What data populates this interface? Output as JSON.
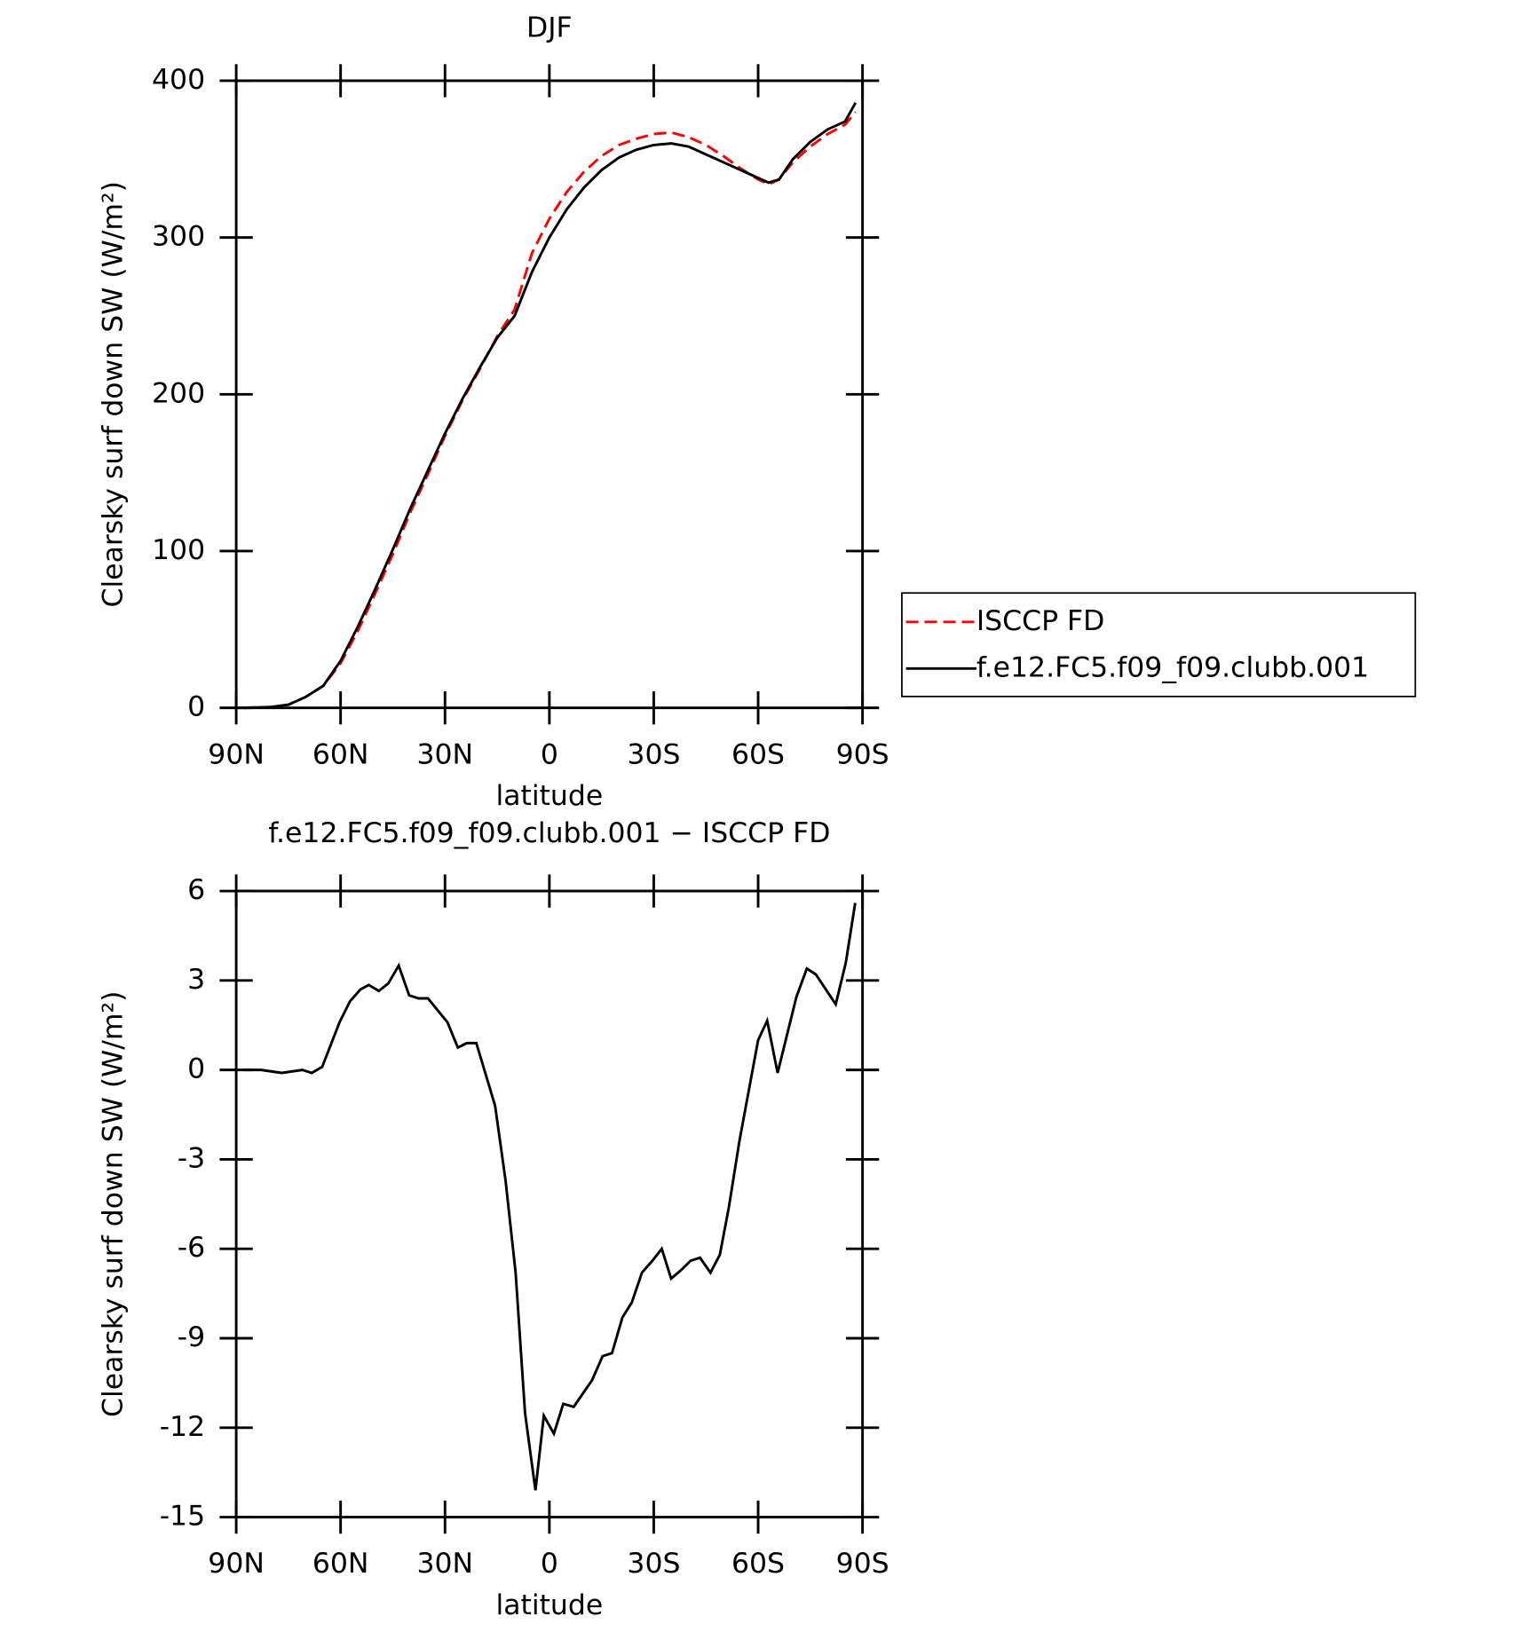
{
  "chart_data": [
    {
      "type": "line",
      "title": "DJF",
      "x_label": "latitude",
      "y_label": "Clearsky surf down SW (W/m²)",
      "x": [
        88,
        80,
        75,
        70,
        65,
        60,
        55,
        50,
        45,
        40,
        35,
        30,
        25,
        20,
        15,
        10,
        5,
        0,
        -5,
        -10,
        -15,
        -20,
        -25,
        -30,
        -35,
        -40,
        -45,
        -50,
        -55,
        -60,
        -63,
        -66,
        -70,
        -75,
        -80,
        -85,
        -88
      ],
      "series": [
        {
          "name": "ISCCP FD",
          "color": "#ff0000",
          "dash": "dashed",
          "values": [
            0,
            0.5,
            2,
            7,
            14,
            28.4,
            49.3,
            73.2,
            98,
            124.5,
            148.6,
            173.4,
            196,
            216,
            237,
            254,
            290,
            312,
            329,
            342,
            352,
            359,
            363,
            366,
            367,
            364,
            359,
            352,
            344,
            337,
            334,
            337,
            348,
            358,
            366,
            372,
            380
          ]
        },
        {
          "name": "f.e12.FC5.f09_f09.clubb.001",
          "color": "#000000",
          "dash": "solid",
          "values": [
            0,
            0.5,
            2,
            7,
            14,
            30,
            52,
            76,
            101,
            127,
            151,
            175,
            197,
            217,
            236,
            250,
            278,
            300,
            318,
            332,
            343,
            351,
            356,
            359,
            360,
            358,
            353,
            348,
            343,
            338,
            335,
            337,
            350,
            361,
            369,
            374,
            386
          ]
        }
      ],
      "xlim": [
        90,
        -90
      ],
      "xticks": [
        {
          "value": 90,
          "label": "90N"
        },
        {
          "value": 60,
          "label": "60N"
        },
        {
          "value": 30,
          "label": "30N"
        },
        0,
        {
          "value": -30,
          "label": "30S"
        },
        {
          "value": -60,
          "label": "60S"
        },
        {
          "value": -90,
          "label": "90S"
        }
      ],
      "ylim": [
        0,
        400
      ],
      "yticks": [
        0,
        100,
        200,
        300,
        400
      ],
      "legend_position": "right"
    },
    {
      "type": "line",
      "title": "f.e12.FC5.f09_f09.clubb.001 − ISCCP FD",
      "x_label": "latitude",
      "y_label": "Clearsky surf down SW (W/m²)",
      "x": [
        87.9,
        82.9,
        76.9,
        71,
        68.3,
        65.3,
        60.3,
        57.3,
        54.3,
        51.9,
        49,
        46.3,
        43.3,
        40.3,
        37.6,
        34.9,
        29.3,
        26.3,
        23.7,
        21,
        15.6,
        12.6,
        9.7,
        7,
        4,
        1.6,
        -1.3,
        -4,
        -7,
        -12.3,
        -15.3,
        -18,
        -21,
        -23.7,
        -26.6,
        -29.6,
        -32.3,
        -35,
        -38,
        -40.6,
        -43.3,
        -46.3,
        -49,
        -51.6,
        -54.6,
        -60,
        -62.6,
        -65.6,
        -71,
        -74,
        -76.6,
        -82.3,
        -85.2,
        -87.9
      ],
      "series": [
        {
          "color": "#000000",
          "values": [
            0,
            0,
            -0.1,
            0,
            -0.1,
            0.1,
            1.6,
            2.3,
            2.7,
            2.85,
            2.65,
            2.9,
            3.5,
            2.5,
            2.4,
            2.4,
            1.6,
            0.75,
            0.9,
            0.9,
            -1.2,
            -3.7,
            -6.8,
            -11.5,
            -14.1,
            -11.6,
            -12.2,
            -11.2,
            -11.3,
            -10.4,
            -9.6,
            -9.5,
            -8.3,
            -7.8,
            -6.8,
            -6.4,
            -6,
            -7,
            -6.7,
            -6.4,
            -6.3,
            -6.8,
            -6.2,
            -4.6,
            -2.4,
            1,
            1.65,
            -0.1,
            2.45,
            3.4,
            3.2,
            2.2,
            3.6,
            5.6
          ]
        }
      ],
      "xlim": [
        90,
        -90
      ],
      "xticks": [
        {
          "value": 90,
          "label": "90N"
        },
        {
          "value": 60,
          "label": "60N"
        },
        {
          "value": 30,
          "label": "30N"
        },
        0,
        {
          "value": -30,
          "label": "30S"
        },
        {
          "value": -60,
          "label": "60S"
        },
        {
          "value": -90,
          "label": "90S"
        }
      ],
      "ylim": [
        -15,
        6
      ],
      "yticks": [
        -15,
        -12,
        -9,
        -6,
        -3,
        0,
        3,
        6
      ]
    }
  ]
}
